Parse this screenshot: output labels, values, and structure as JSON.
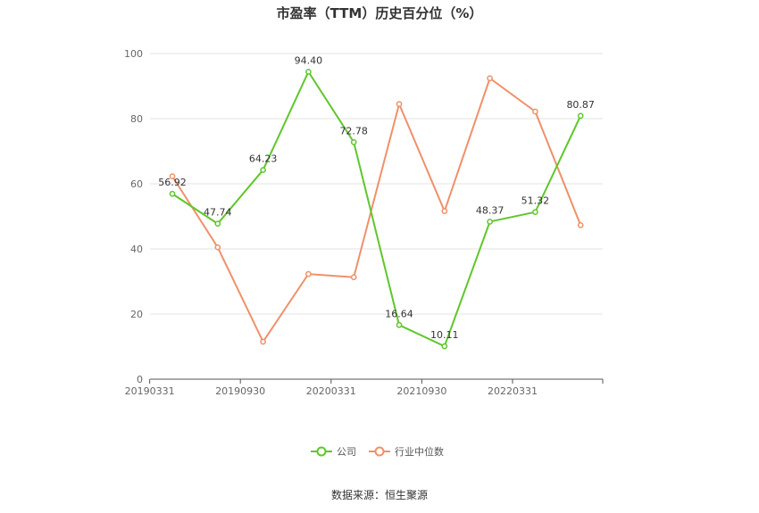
{
  "chart_data": {
    "type": "line",
    "title": "市盈率（TTM）历史百分位（%）",
    "x_tick_labels": [
      "20190331",
      "20190930",
      "20200331",
      "20210930",
      "20220331"
    ],
    "ylim": [
      0,
      100
    ],
    "y_ticks": [
      0,
      20,
      40,
      60,
      80,
      100
    ],
    "grid": true,
    "legend_position": "bottom-center",
    "series": [
      {
        "name": "公司",
        "color": "#5ec72b",
        "values": [
          56.92,
          47.74,
          64.23,
          94.4,
          72.78,
          16.64,
          10.11,
          48.37,
          51.32,
          80.87
        ],
        "labels": [
          "56.92",
          "47.74",
          "64.23",
          "94.40",
          "72.78",
          "16.64",
          "10.11",
          "48.37",
          "51.32",
          "80.87"
        ]
      },
      {
        "name": "行业中位数",
        "color": "#f0906a",
        "values": [
          62.3,
          40.5,
          11.5,
          32.3,
          31.3,
          84.5,
          51.6,
          92.4,
          82.2,
          47.3
        ]
      }
    ],
    "source": "数据来源：恒生聚源"
  }
}
